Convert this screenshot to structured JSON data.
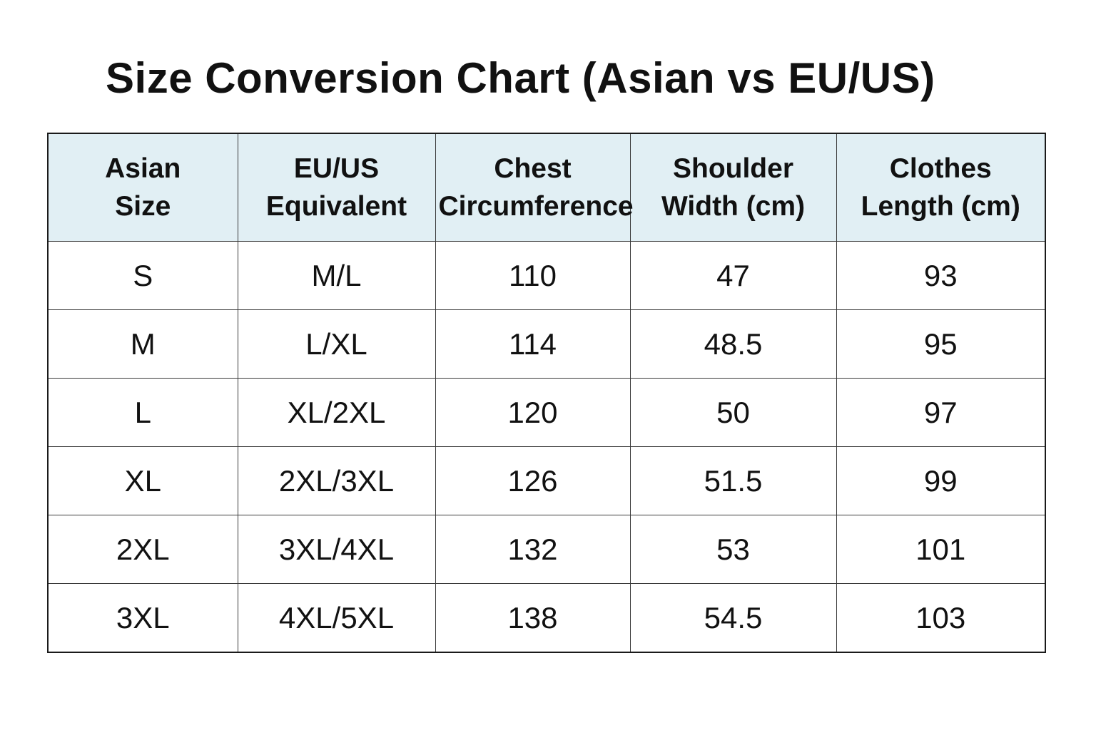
{
  "title": "Size Conversion Chart (Asian vs EU/US)",
  "colors": {
    "header_background": "#e1eff4",
    "border": "#1a1a1a",
    "text": "#111111"
  },
  "table": {
    "headers": [
      {
        "line1": "Asian",
        "line2": "Size"
      },
      {
        "line1": "EU/US",
        "line2": "Equivalent"
      },
      {
        "line1": "Chest",
        "line2": "Circumference"
      },
      {
        "line1": "Shoulder",
        "line2": "Width (cm)"
      },
      {
        "line1": "Clothes",
        "line2": "Length (cm)"
      }
    ],
    "rows": [
      [
        "S",
        "M/L",
        "110",
        "47",
        "93"
      ],
      [
        "M",
        "L/XL",
        "114",
        "48.5",
        "95"
      ],
      [
        "L",
        "XL/2XL",
        "120",
        "50",
        "97"
      ],
      [
        "XL",
        "2XL/3XL",
        "126",
        "51.5",
        "99"
      ],
      [
        "2XL",
        "3XL/4XL",
        "132",
        "53",
        "101"
      ],
      [
        "3XL",
        "4XL/5XL",
        "138",
        "54.5",
        "103"
      ]
    ]
  }
}
